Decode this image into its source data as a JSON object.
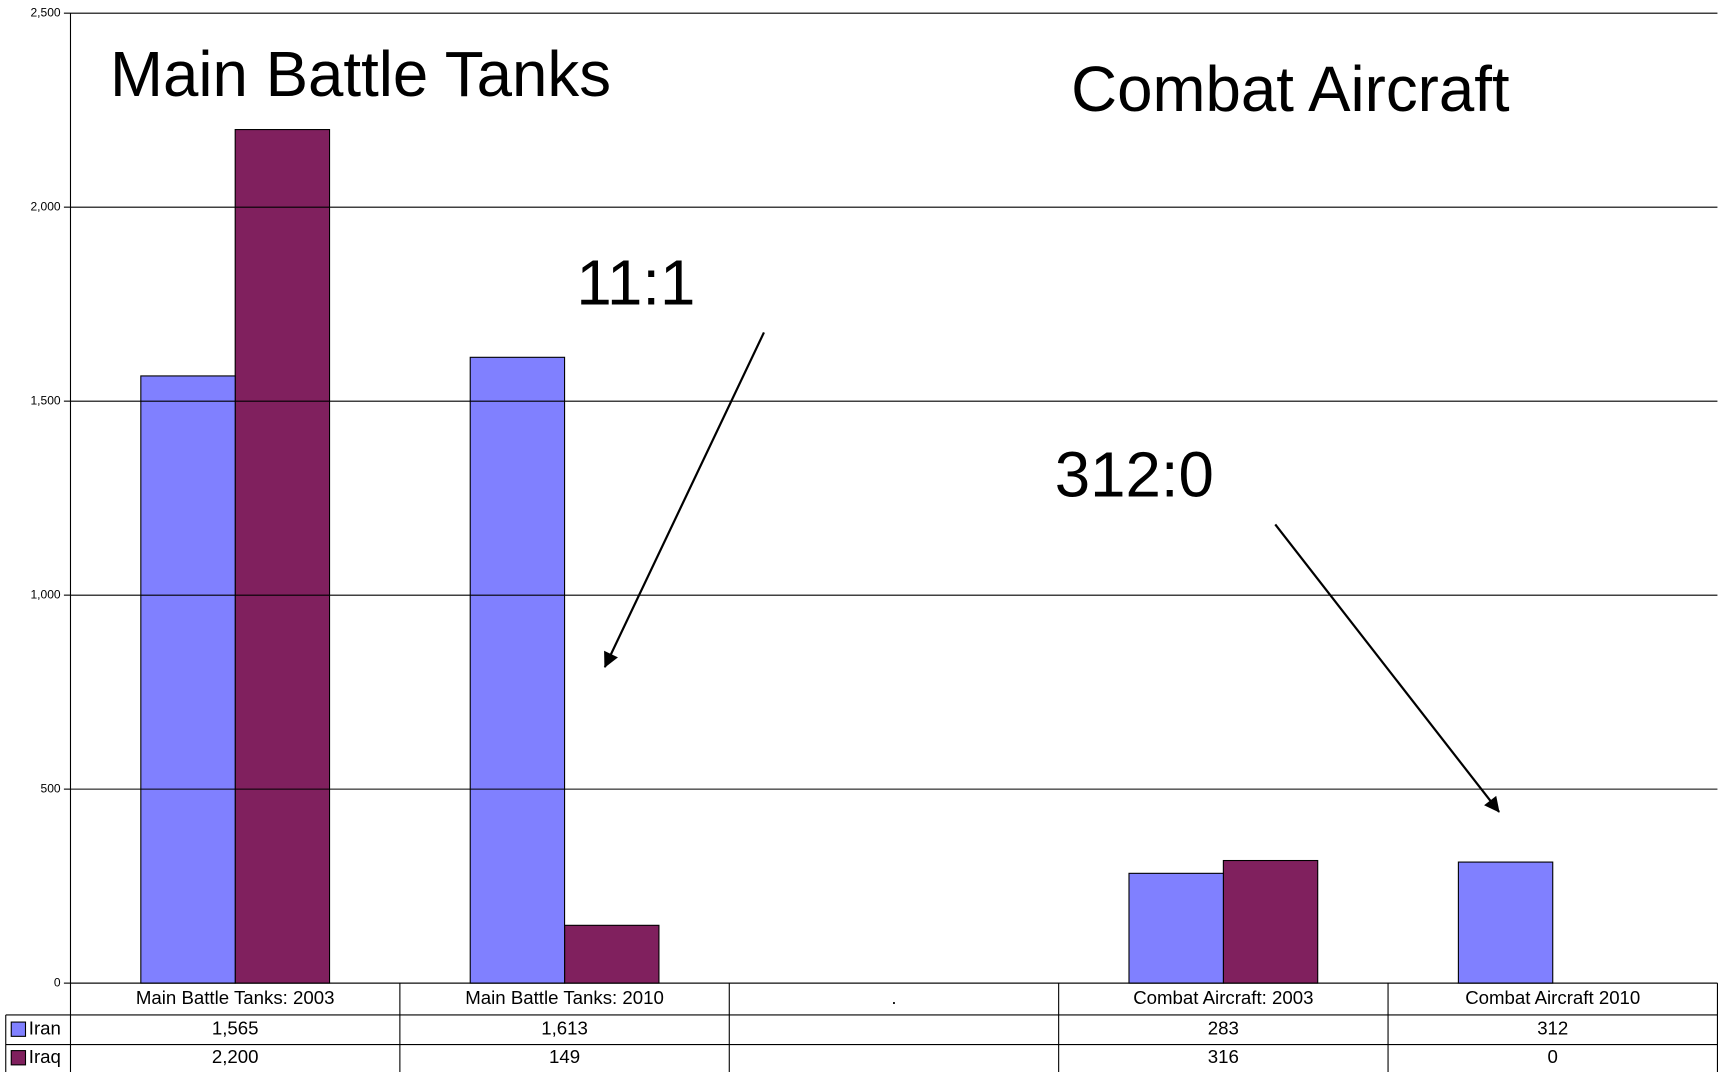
{
  "chart_data": {
    "type": "bar",
    "annotations": [
      "Main Battle Tanks",
      "Combat Aircraft",
      "11:1",
      "312:0"
    ],
    "categories": [
      "Main Battle Tanks: 2003",
      "Main Battle Tanks: 2010",
      ".",
      "Combat Aircraft: 2003",
      "Combat Aircraft 2010"
    ],
    "series": [
      {
        "name": "Iran",
        "color": "#8080ff",
        "values": [
          1565,
          1613,
          null,
          283,
          312
        ],
        "value_labels": [
          "1,565",
          "1,613",
          null,
          "283",
          "312"
        ]
      },
      {
        "name": "Iraq",
        "color": "#80205e",
        "values": [
          2200,
          149,
          null,
          316,
          0
        ],
        "value_labels": [
          "2,200",
          "149",
          null,
          "316",
          "0"
        ]
      }
    ],
    "ylim": [
      0,
      2500
    ],
    "yticks": [
      0,
      500,
      {
        "value": 1000,
        "label": "1,000"
      },
      {
        "value": 1500,
        "label": "1,500"
      },
      {
        "value": 2000,
        "label": "2,000"
      },
      {
        "value": 2500,
        "label": "2,500"
      }
    ],
    "grid": true
  }
}
